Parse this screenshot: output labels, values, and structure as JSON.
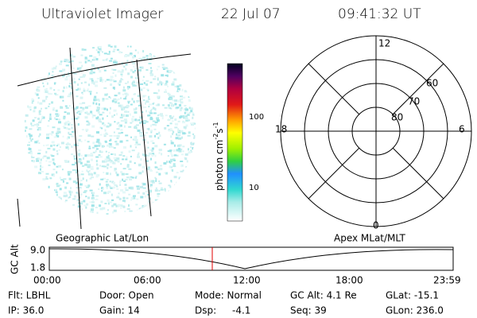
{
  "header": {
    "title": "Ultraviolet Imager",
    "date": "22 Jul 07",
    "time": "09:41:32 UT"
  },
  "colorbar": {
    "label": {
      "text": "photon cm",
      "exp1": "-2",
      "unit2": "s",
      "exp2": "-1"
    },
    "ticks": [
      "100",
      "10"
    ]
  },
  "polar": {
    "mlt_labels": [
      "12",
      "18",
      "6",
      "0"
    ],
    "lat_labels": [
      "60",
      "70",
      "80"
    ]
  },
  "timeline": {
    "y_label": "GC Alt",
    "y_ticks": [
      "9.0",
      "1.8"
    ],
    "left_label": "Geographic Lat/Lon",
    "right_label": "Apex MLat/MLT",
    "x_ticks": [
      "00:00",
      "06:00",
      "12:00",
      "18:00",
      "23:59"
    ]
  },
  "footer": {
    "rows": [
      [
        "Flt: LBHL",
        "Door: Open",
        "Mode: Normal",
        "GC Alt: 4.1 Re",
        "GLat: -15.1"
      ],
      [
        "IP: 36.0",
        "Gain: 14",
        "Dsp:",
        "-4.1",
        "Seq: 39",
        "GLon: 236.0"
      ]
    ]
  }
}
